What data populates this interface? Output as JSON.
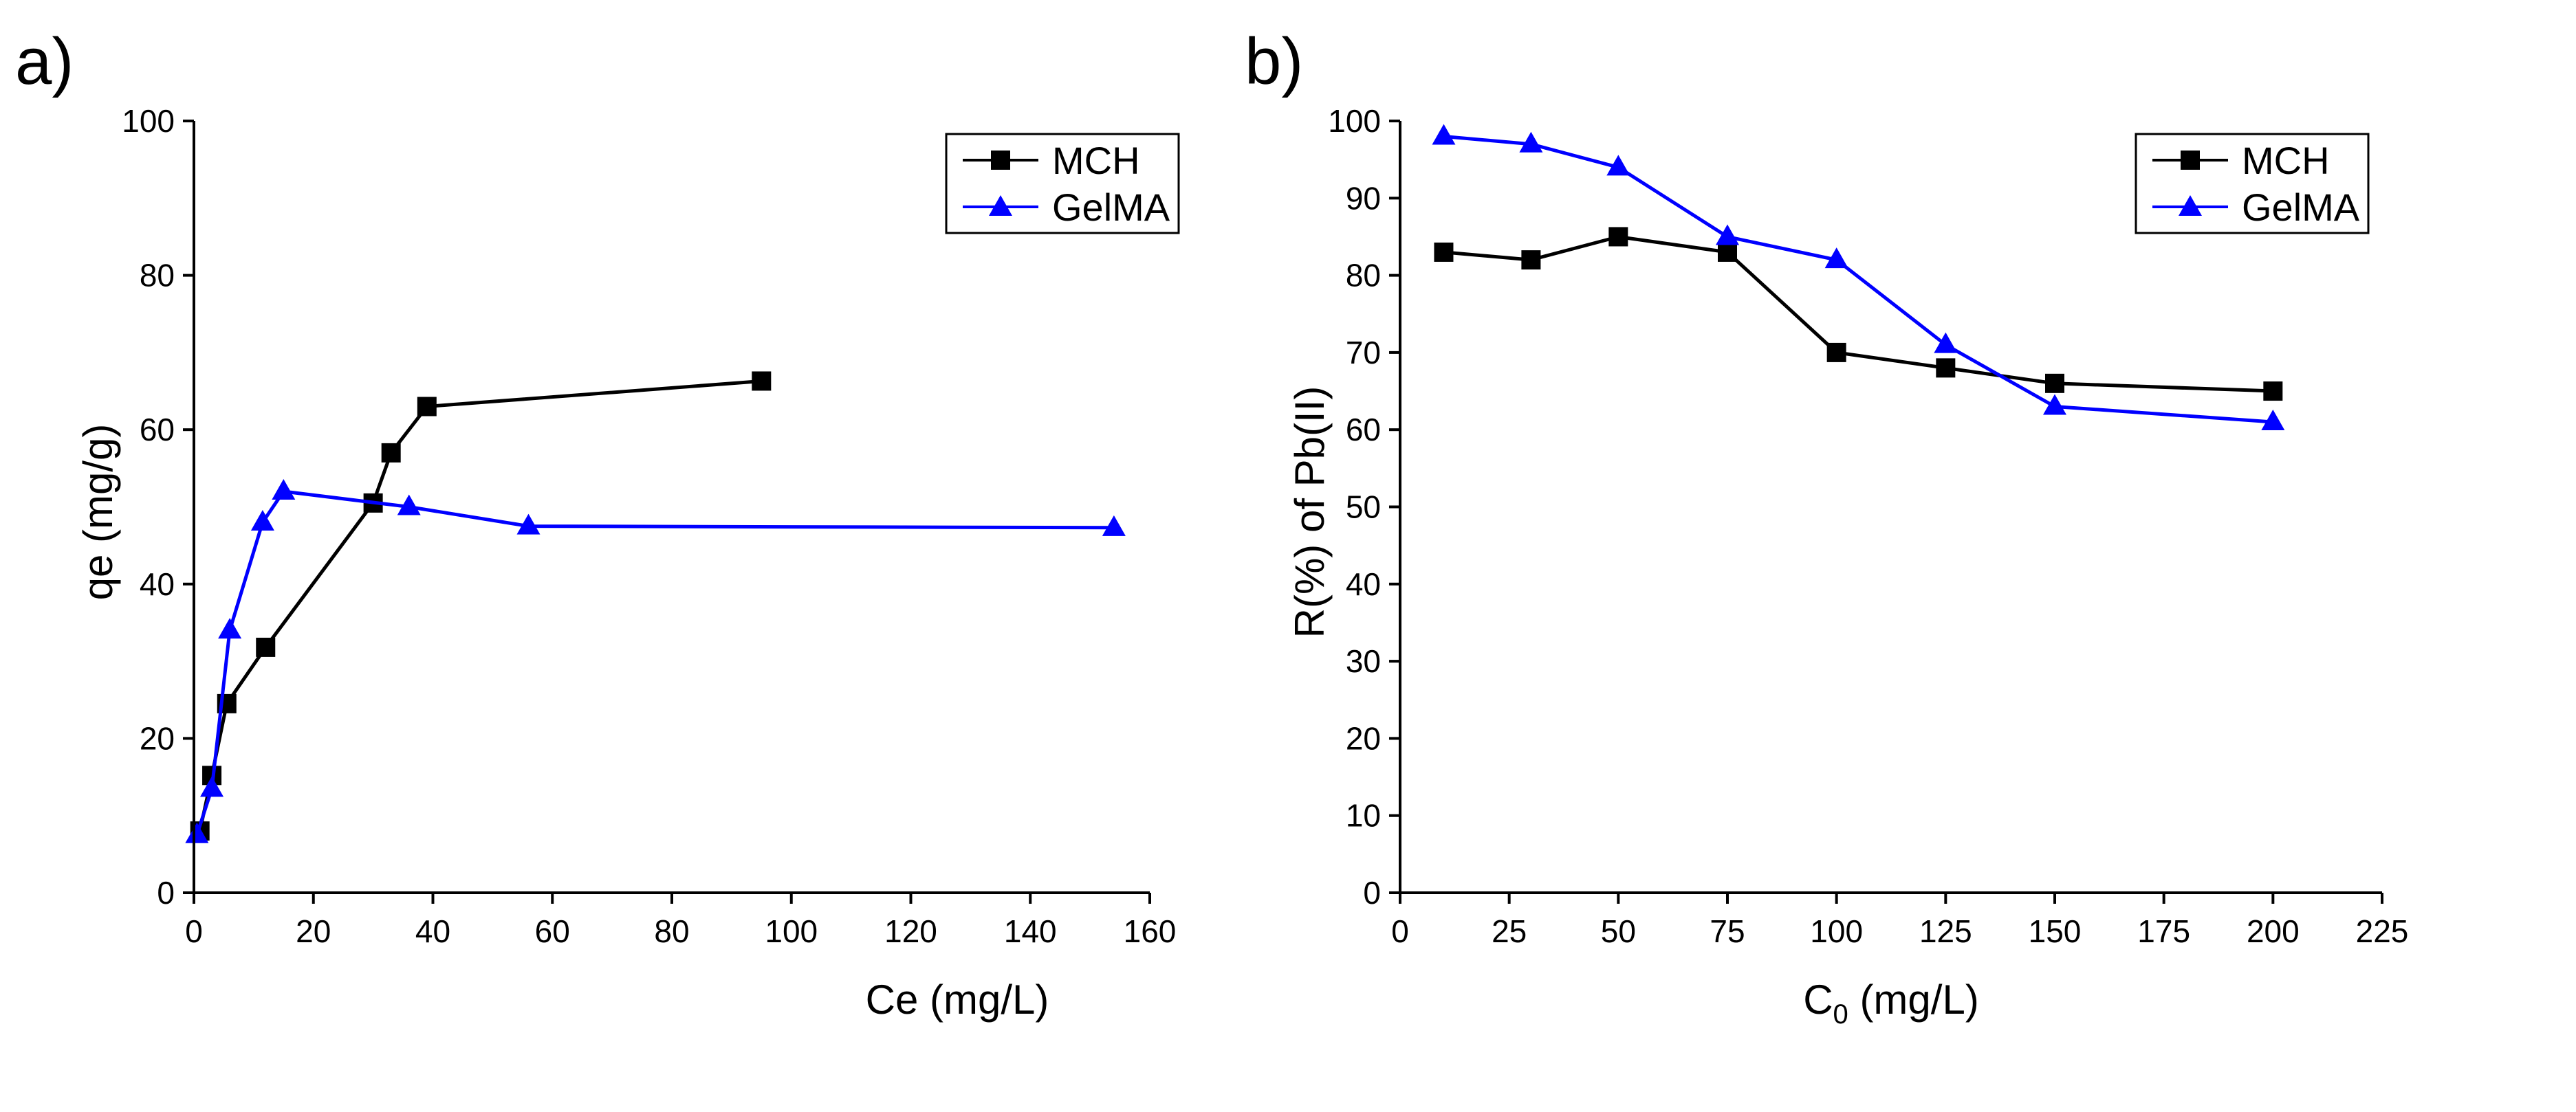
{
  "chart_data": [
    {
      "panel_label": "a)",
      "type": "line",
      "xlabel": "Ce (mg/L)",
      "ylabel": "qe (mg/g)",
      "xlim": [
        0,
        160
      ],
      "ylim": [
        0,
        100
      ],
      "xticks": [
        0,
        20,
        40,
        60,
        80,
        100,
        120,
        140,
        160
      ],
      "yticks": [
        0,
        20,
        40,
        60,
        80,
        100
      ],
      "legend_position": "top-right",
      "series": [
        {
          "name": "MCH",
          "color": "#000000",
          "marker": "square",
          "points": [
            [
              1,
              8
            ],
            [
              3,
              15.2
            ],
            [
              5.5,
              24.5
            ],
            [
              12,
              31.8
            ],
            [
              30,
              50.5
            ],
            [
              33,
              57
            ],
            [
              39,
              63
            ],
            [
              95,
              66.3
            ]
          ]
        },
        {
          "name": "GelMA",
          "color": "#0000ff",
          "marker": "triangle",
          "points": [
            [
              0.5,
              7.5
            ],
            [
              3,
              13.5
            ],
            [
              6,
              34
            ],
            [
              11.5,
              48
            ],
            [
              15,
              52
            ],
            [
              36,
              50
            ],
            [
              56,
              47.5
            ],
            [
              154,
              47.3
            ]
          ]
        }
      ]
    },
    {
      "panel_label": "b)",
      "type": "line",
      "xlabel": "C",
      "xlabel_sub": "0",
      "xlabel_unit": " (mg/L)",
      "ylabel": "R(%) of Pb(II)",
      "xlim": [
        0,
        225
      ],
      "ylim": [
        0,
        100
      ],
      "xticks": [
        0,
        25,
        50,
        75,
        100,
        125,
        150,
        175,
        200,
        225
      ],
      "yticks": [
        0,
        10,
        20,
        30,
        40,
        50,
        60,
        70,
        80,
        90,
        100
      ],
      "legend_position": "top-right",
      "series": [
        {
          "name": "MCH",
          "color": "#000000",
          "marker": "square",
          "points": [
            [
              10,
              83
            ],
            [
              30,
              82
            ],
            [
              50,
              85
            ],
            [
              75,
              83
            ],
            [
              100,
              70
            ],
            [
              125,
              68
            ],
            [
              150,
              66
            ],
            [
              200,
              65
            ]
          ]
        },
        {
          "name": "GelMA",
          "color": "#0000ff",
          "marker": "triangle",
          "points": [
            [
              10,
              98
            ],
            [
              30,
              97
            ],
            [
              50,
              94
            ],
            [
              75,
              85
            ],
            [
              100,
              82
            ],
            [
              125,
              71
            ],
            [
              150,
              63
            ],
            [
              200,
              61
            ]
          ]
        }
      ]
    }
  ]
}
